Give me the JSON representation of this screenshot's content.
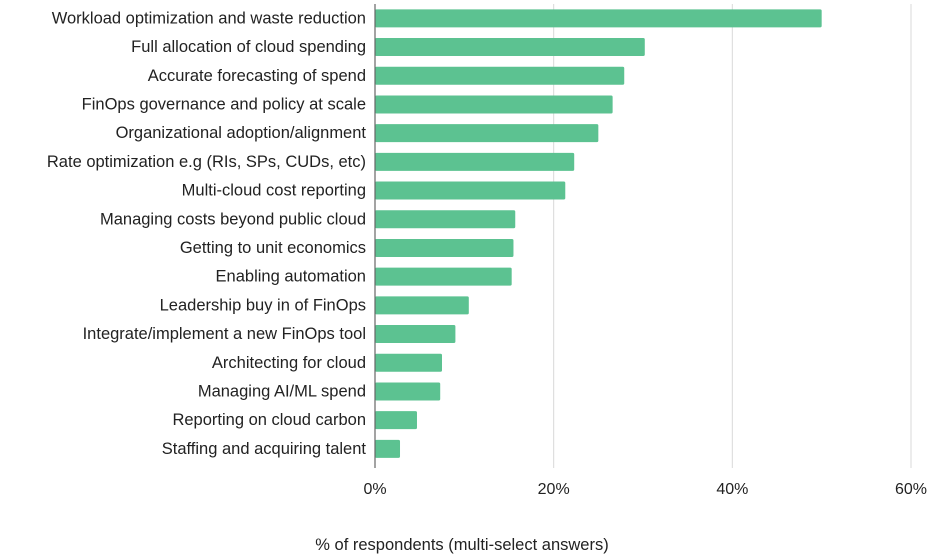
{
  "chart_data": {
    "type": "bar",
    "orientation": "horizontal",
    "categories": [
      "Workload optimization and waste reduction",
      "Full allocation of cloud spending",
      "Accurate forecasting of spend",
      "FinOps governance and policy at scale",
      "Organizational adoption/alignment",
      "Rate optimization e.g (RIs, SPs, CUDs, etc)",
      "Multi-cloud cost reporting",
      "Managing costs beyond public cloud",
      "Getting to unit economics",
      "Enabling automation",
      "Leadership buy in of FinOps",
      "Integrate/implement a new FinOps tool",
      "Architecting for cloud",
      "Managing AI/ML spend",
      "Reporting on cloud carbon",
      "Staffing and acquiring talent"
    ],
    "values": [
      50.0,
      30.2,
      27.9,
      26.6,
      25.0,
      22.3,
      21.3,
      15.7,
      15.5,
      15.3,
      10.5,
      9.0,
      7.5,
      7.3,
      4.7,
      2.8
    ],
    "title": "",
    "xlabel": "% of respondents (multi-select answers)",
    "ylabel": "",
    "xlim": [
      0,
      60
    ],
    "x_ticks": [
      0,
      20,
      40,
      60
    ],
    "x_tick_labels": [
      "0%",
      "20%",
      "40%",
      "60%"
    ],
    "grid": "vertical",
    "legend": "none",
    "bar_color": "#5cc291",
    "grid_color": "#d9d9d9",
    "axis_color": "#666666",
    "text_color": "#222222"
  }
}
